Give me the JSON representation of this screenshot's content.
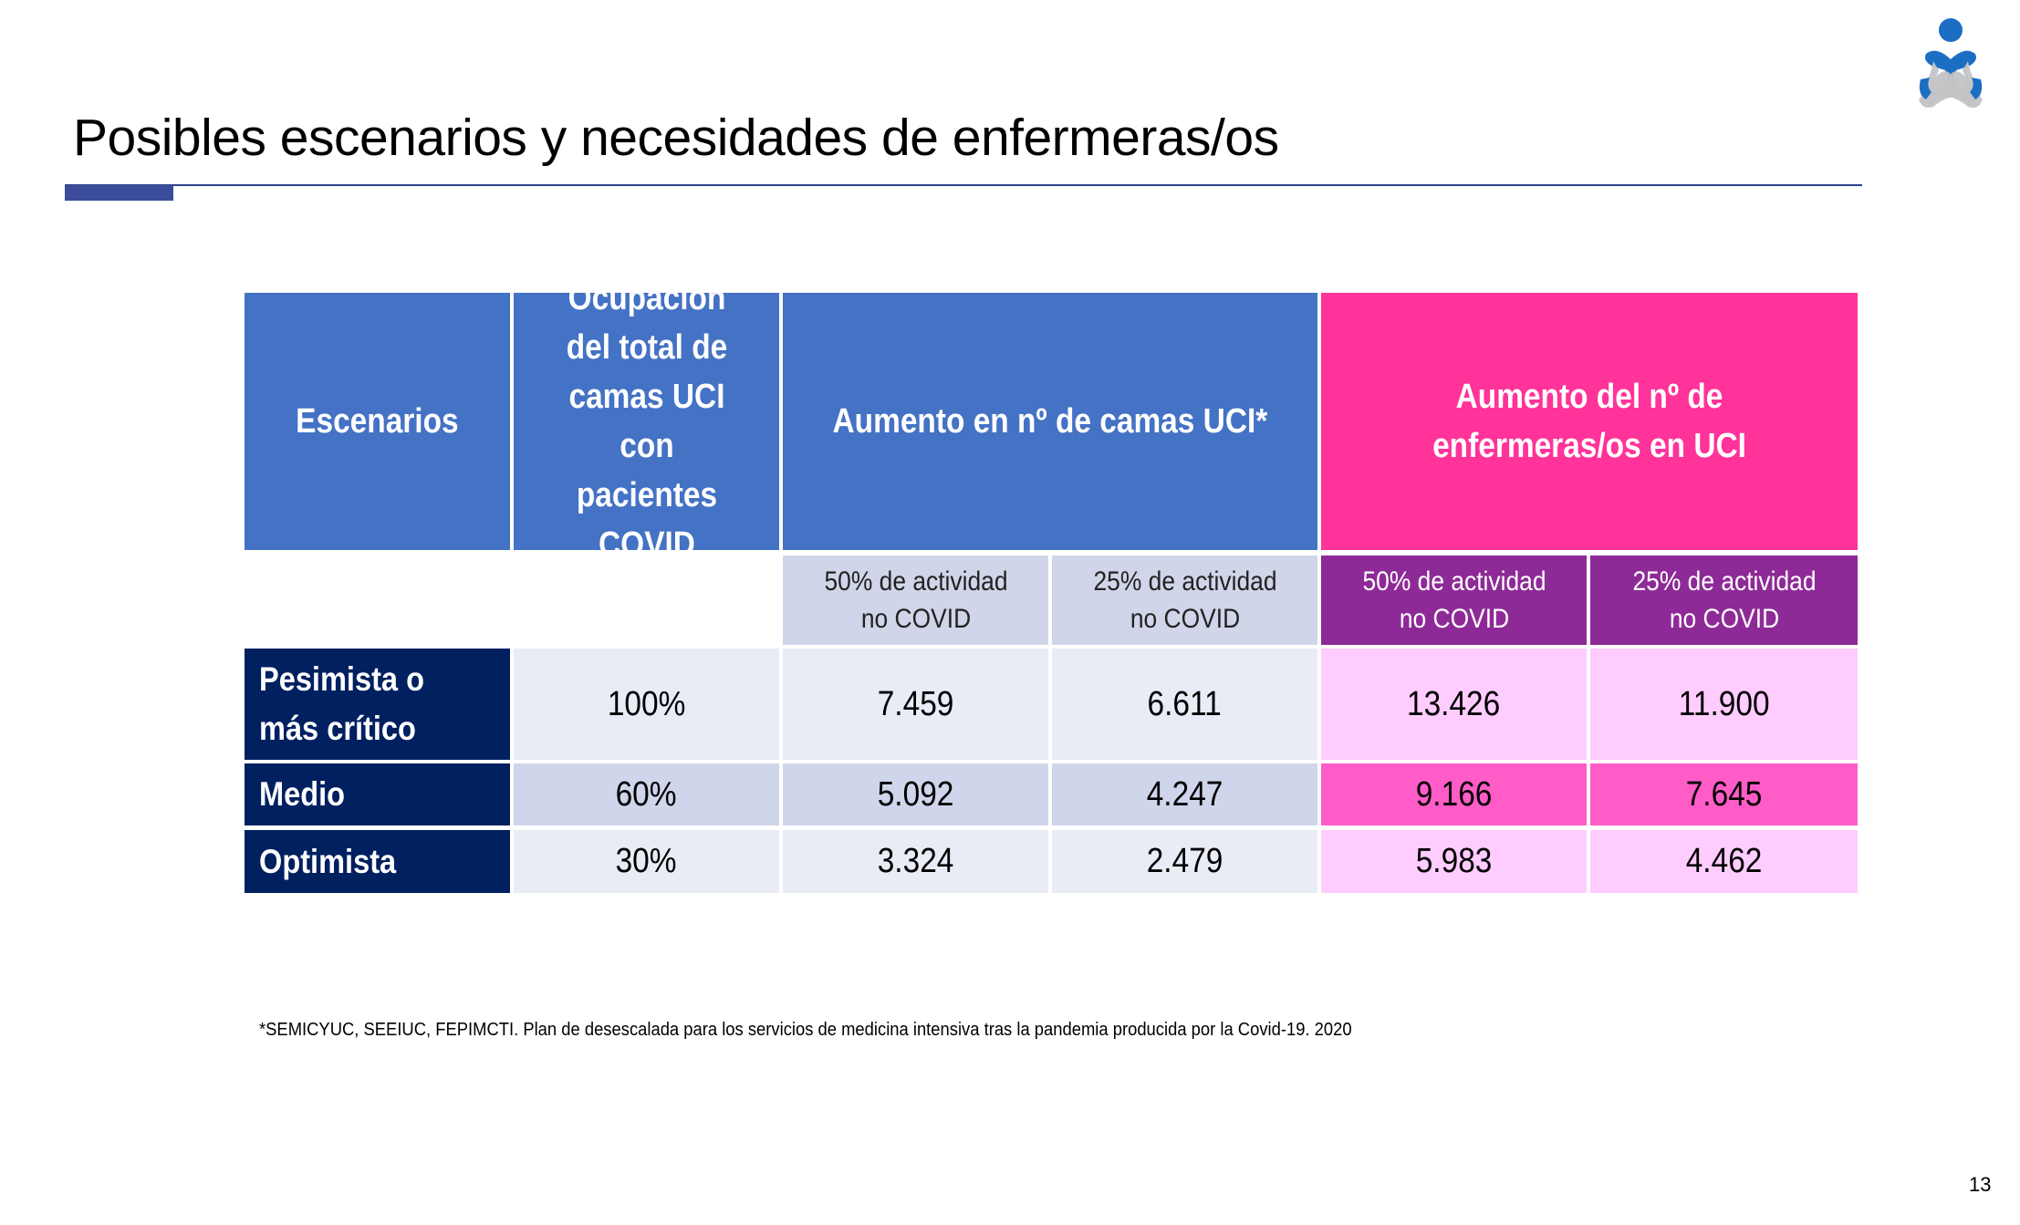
{
  "slide": {
    "title": "Posibles escenarios y necesidades de enfermeras/os",
    "footnote": "*SEMICYUC, SEEIUC, FEPIMCTI. Plan de desescalada para los servicios de medicina intensiva tras la pandemia producida por la Covid-19. 2020",
    "page_number": "13",
    "logo": "person-ribbon-logo"
  },
  "colors": {
    "header_blue": "#4472C4",
    "header_pink": "#FF3399",
    "sub_grey": "#D0D5E9",
    "sub_purple": "#8E2A97",
    "row_navy": "#002060",
    "row_light": "#E9EBF5",
    "row_mid": "#CFD5EA",
    "pink_light": "#FFCCFF",
    "pink_mid": "#FF5CC8"
  },
  "table": {
    "headers": {
      "scenarios": "Escenarios",
      "occupancy": "Ocupación del total de camas UCI con pacientes COVID",
      "beds": "Aumento en nº de camas UCI*",
      "nurses": "Aumento del nº de enfermeras/os en UCI"
    },
    "subheaders": [
      "50% de actividad no COVID",
      "25% de actividad no COVID",
      "50% de actividad no COVID",
      "25% de actividad no COVID"
    ],
    "rows": [
      {
        "scenario": "Pesimista o más crítico",
        "occupancy": "100%",
        "beds_50": "7.459",
        "beds_25": "6.611",
        "nurses_50": "13.426",
        "nurses_25": "11.900"
      },
      {
        "scenario": "Medio",
        "occupancy": "60%",
        "beds_50": "5.092",
        "beds_25": "4.247",
        "nurses_50": "9.166",
        "nurses_25": "7.645"
      },
      {
        "scenario": "Optimista",
        "occupancy": "30%",
        "beds_50": "3.324",
        "beds_25": "2.479",
        "nurses_50": "5.983",
        "nurses_25": "4.462"
      }
    ]
  }
}
